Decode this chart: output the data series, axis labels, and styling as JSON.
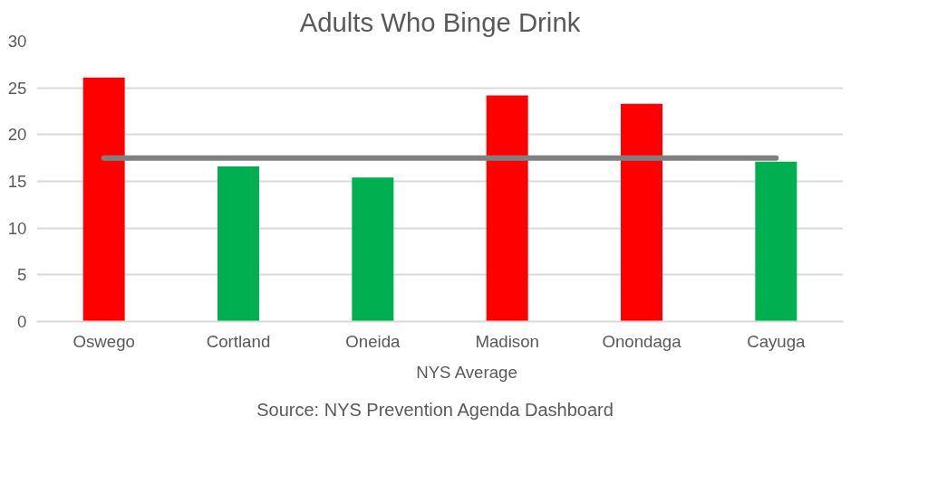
{
  "chart_data": {
    "type": "bar",
    "title": "Adults Who Binge Drink",
    "categories": [
      "Oswego",
      "Cortland",
      "Oneida",
      "Madison",
      "Onondaga",
      "Cayuga"
    ],
    "series": [
      {
        "colors": [
          "#ff0000",
          "#00b050",
          "#00b050",
          "#ff0000",
          "#ff0000",
          "#00b050"
        ],
        "values": [
          26.1,
          16.6,
          15.4,
          24.2,
          23.3,
          17.1
        ]
      },
      {
        "type": "line",
        "name": "NYS Average",
        "color": "#808080",
        "values": [
          17.5,
          17.5,
          17.5,
          17.5,
          17.5,
          17.5
        ]
      }
    ],
    "ylim": [
      0,
      30
    ],
    "yticks": [
      0,
      5,
      10,
      15,
      20,
      25,
      30
    ],
    "grid": "y",
    "legend": "bottom",
    "annotations": [
      "Source: NYS Prevention Agenda Dashboard"
    ]
  }
}
